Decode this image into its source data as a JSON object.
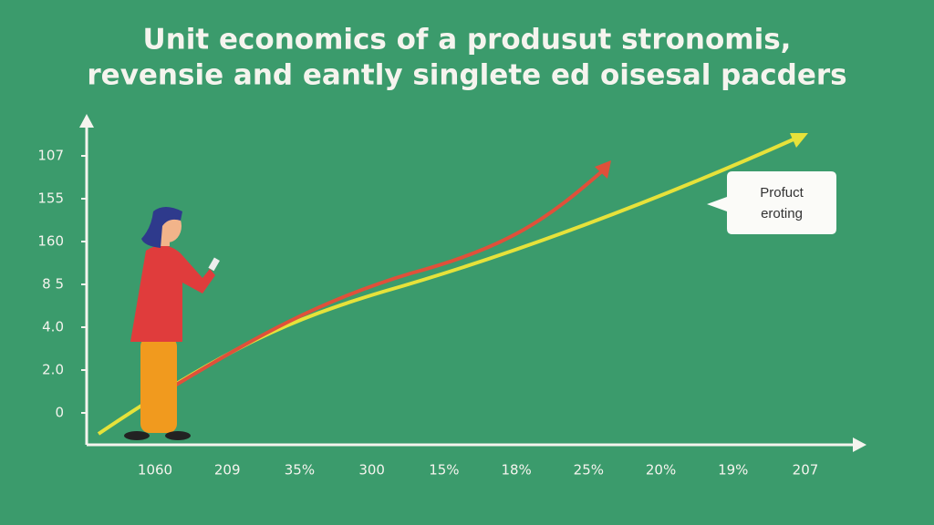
{
  "title": {
    "lines": [
      "Unit economics of a produsut stronomis,",
      "revensie and eantly singlete ed oisesal pacders"
    ]
  },
  "y_axis_labels": [
    "107",
    "155",
    "160",
    "8 5",
    "4.0",
    "2.0",
    "0"
  ],
  "x_axis_labels": [
    "1060",
    "209",
    "35%",
    "300",
    "15%",
    "18%",
    "25%",
    "20%",
    "19%",
    "207"
  ],
  "callout": {
    "lines": [
      "Profuct",
      "eroting"
    ]
  }
}
